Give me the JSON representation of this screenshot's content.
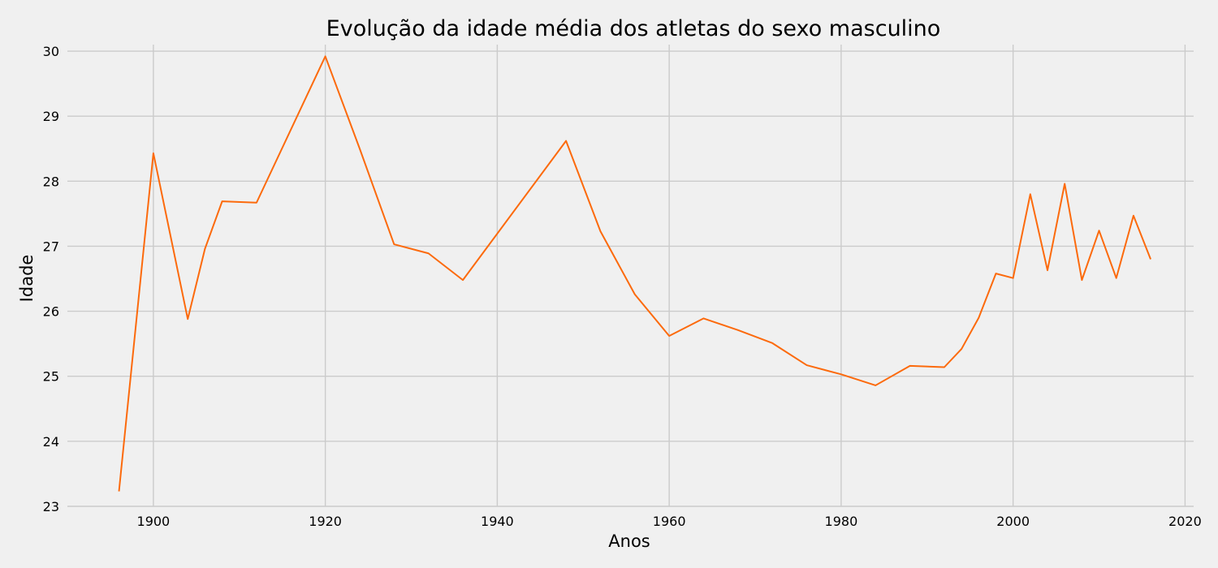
{
  "chart_data": {
    "type": "line",
    "title": "Evolução da idade média dos atletas do sexo masculino",
    "xlabel": "Anos",
    "ylabel": "Idade",
    "xlim": [
      1890,
      2021
    ],
    "ylim": [
      23,
      30.1
    ],
    "xticks": [
      1900,
      1920,
      1940,
      1960,
      1980,
      2000,
      2020
    ],
    "yticks": [
      23,
      24,
      25,
      26,
      27,
      28,
      29,
      30
    ],
    "grid": true,
    "series_color": "#fc6a0c",
    "x": [
      1896,
      1900,
      1904,
      1906,
      1908,
      1912,
      1920,
      1924,
      1928,
      1932,
      1936,
      1948,
      1952,
      1956,
      1960,
      1964,
      1968,
      1972,
      1976,
      1980,
      1984,
      1988,
      1992,
      1994,
      1996,
      1998,
      2000,
      2002,
      2004,
      2006,
      2008,
      2010,
      2012,
      2014,
      2016
    ],
    "y": [
      23.23,
      28.43,
      25.88,
      26.96,
      27.69,
      27.67,
      29.92,
      28.5,
      27.03,
      26.89,
      26.48,
      28.62,
      27.23,
      26.26,
      25.62,
      25.89,
      25.71,
      25.51,
      25.17,
      25.03,
      24.86,
      25.16,
      25.14,
      25.42,
      25.9,
      26.58,
      26.51,
      27.8,
      26.63,
      27.96,
      26.48,
      27.24,
      26.51,
      27.47,
      26.8
    ]
  }
}
